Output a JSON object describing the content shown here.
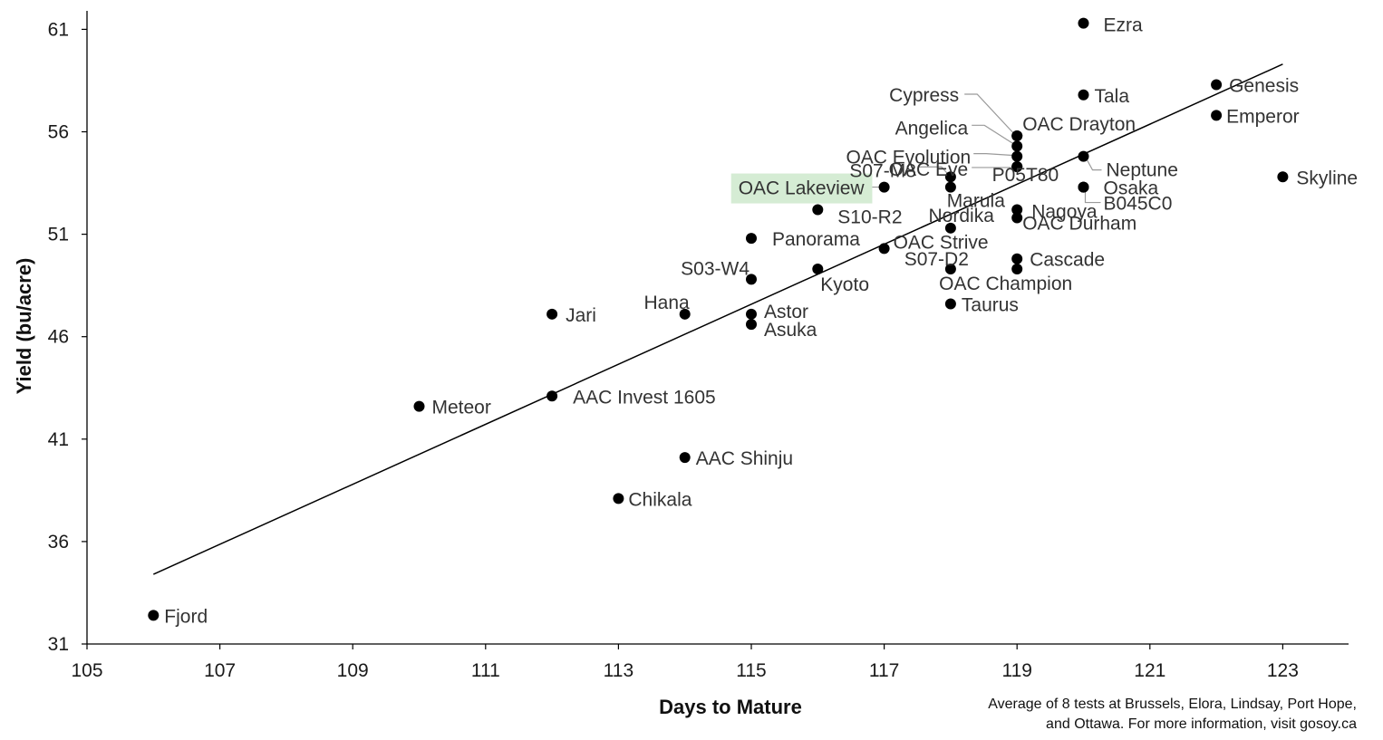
{
  "chart_data": {
    "type": "scatter",
    "xlabel": "Days to Mature",
    "ylabel": "Yield (bu/acre)",
    "xlim": [
      105,
      124
    ],
    "ylim": [
      31,
      62
    ],
    "x_ticks": [
      105,
      107,
      109,
      111,
      113,
      115,
      117,
      119,
      121,
      123
    ],
    "y_ticks": [
      31,
      36,
      41,
      46,
      51,
      56,
      61
    ],
    "grid": false,
    "trendline": {
      "type": "linear",
      "x": [
        106,
        123
      ],
      "y": [
        34.4,
        59.3
      ]
    },
    "highlight_color": "#d5ecd4",
    "note_lines": [
      "Average of 8 tests at Brussels, Elora, Lindsay, Port Hope,",
      "and Ottawa. For more information, visit gosoy.ca"
    ],
    "points": [
      {
        "label": "Fjord",
        "x": 106,
        "y": 32.4
      },
      {
        "label": "Meteor",
        "x": 110,
        "y": 42.6
      },
      {
        "label": "Jari",
        "x": 112,
        "y": 47.1
      },
      {
        "label": "AAC Invest 1605",
        "x": 112,
        "y": 43.1
      },
      {
        "label": "Chikala",
        "x": 113,
        "y": 38.1
      },
      {
        "label": "Hana",
        "x": 114,
        "y": 47.1
      },
      {
        "label": "AAC Shinju",
        "x": 114,
        "y": 40.1
      },
      {
        "label": "Panorama",
        "x": 115,
        "y": 50.8
      },
      {
        "label": "S03-W4",
        "x": 115,
        "y": 48.8
      },
      {
        "label": "Astor",
        "x": 115,
        "y": 47.1
      },
      {
        "label": "Asuka",
        "x": 115,
        "y": 46.6
      },
      {
        "label": "S10-R2",
        "x": 116,
        "y": 52.2
      },
      {
        "label": "Kyoto",
        "x": 116,
        "y": 49.3
      },
      {
        "label": "OAC Lakeview",
        "x": 117,
        "y": 53.3,
        "highlight": true
      },
      {
        "label": "OAC Strive",
        "x": 117,
        "y": 50.3
      },
      {
        "label": "S07-M8",
        "x": 118,
        "y": 53.8
      },
      {
        "label": "Marula",
        "x": 118,
        "y": 53.3
      },
      {
        "label": "Nordika",
        "x": 118,
        "y": 51.3
      },
      {
        "label": "S07-D2",
        "x": 118,
        "y": 49.3
      },
      {
        "label": "Taurus",
        "x": 118,
        "y": 47.6
      },
      {
        "label": "Cypress",
        "x": 119,
        "y": 55.8
      },
      {
        "label": "Angelica",
        "x": 119,
        "y": 55.3
      },
      {
        "label": "OAC Evolution",
        "x": 119,
        "y": 54.8
      },
      {
        "label": "OAC Eve",
        "x": 119,
        "y": 54.3
      },
      {
        "label": "OAC Drayton",
        "x": 119,
        "y": 55.8
      },
      {
        "label": "P05T80",
        "x": 119,
        "y": 54.3
      },
      {
        "label": "Nagoya",
        "x": 119,
        "y": 52.2
      },
      {
        "label": "OAC Durham",
        "x": 119,
        "y": 51.8
      },
      {
        "label": "Cascade",
        "x": 119,
        "y": 49.8
      },
      {
        "label": "OAC Champion",
        "x": 119,
        "y": 49.3
      },
      {
        "label": "Ezra",
        "x": 120,
        "y": 61.3
      },
      {
        "label": "Tala",
        "x": 120,
        "y": 57.8
      },
      {
        "label": "Neptune",
        "x": 120,
        "y": 54.8
      },
      {
        "label": "Osaka",
        "x": 120,
        "y": 53.3
      },
      {
        "label": "B045C0",
        "x": 120,
        "y": 53.3
      },
      {
        "label": "Genesis",
        "x": 122,
        "y": 58.3
      },
      {
        "label": "Emperor",
        "x": 122,
        "y": 56.8
      },
      {
        "label": "Skyline",
        "x": 123,
        "y": 53.8
      }
    ]
  }
}
